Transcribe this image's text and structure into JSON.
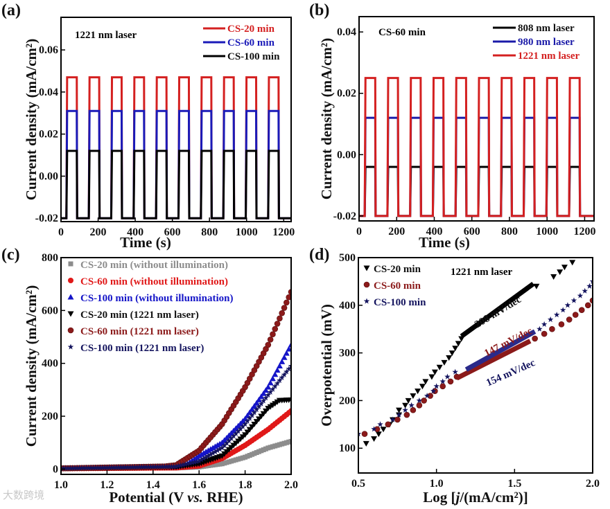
{
  "watermark": "大数跨境",
  "chart_data": [
    {
      "panel": "(a)",
      "type": "line",
      "title": "",
      "annotation": "1221 nm laser",
      "xlabel": "Time (s)",
      "ylabel": "Current density (mA/cm²)",
      "xlim": [
        0,
        1240
      ],
      "ylim": [
        -0.0216,
        0.0755
      ],
      "xticks": [
        0,
        200,
        400,
        600,
        800,
        1000,
        1200
      ],
      "yticks": [
        -0.02,
        0.0,
        0.02,
        0.04,
        0.06
      ],
      "ytick_labels": [
        "-0.02",
        "0.00",
        "0.02",
        "0.04",
        "0.06"
      ],
      "legend_position": "top-right",
      "cycles": 10,
      "period_s": 120.8,
      "first_on_s": 29,
      "on_duration_s": 56,
      "series": [
        {
          "name": "CS-20 min",
          "color": "#d42020",
          "on": 0.047,
          "off": -0.02
        },
        {
          "name": "CS-60 min",
          "color": "#1a1ab8",
          "on": 0.031,
          "off": -0.02
        },
        {
          "name": "CS-100 min",
          "color": "#000000",
          "on": 0.012,
          "off": -0.02
        }
      ]
    },
    {
      "panel": "(b)",
      "type": "line",
      "annotation": "CS-60 min",
      "xlabel": "Time (s)",
      "ylabel": "Current density (mA/cm²)",
      "xlim": [
        0,
        1250
      ],
      "ylim": [
        -0.0216,
        0.045
      ],
      "xticks": [
        0,
        200,
        400,
        600,
        800,
        1000,
        1200
      ],
      "yticks": [
        -0.02,
        0.0,
        0.02,
        0.04
      ],
      "ytick_labels": [
        "-0.02",
        "0.00",
        "0.02",
        "0.04"
      ],
      "legend_position": "top-right",
      "cycles": 10,
      "period_s": 120.8,
      "first_on_s": 30,
      "on_duration_s": 56,
      "series": [
        {
          "name": "808 nm laser",
          "color": "#000000",
          "on": -0.004,
          "off": -0.02
        },
        {
          "name": "980 nm laser",
          "color": "#1a1aa8",
          "on": 0.012,
          "off": -0.02
        },
        {
          "name": "1221 nm laser",
          "color": "#d42020",
          "on": 0.025,
          "off": -0.02
        }
      ],
      "legend_order": [
        0,
        1,
        2
      ]
    },
    {
      "panel": "(c)",
      "type": "scatter",
      "xlabel": "Potential (V vs. RHE)",
      "xlabel_parts": [
        "Potential (V ",
        "vs.",
        " RHE)"
      ],
      "ylabel": "Current density (mA/cm²)",
      "xlim": [
        1.0,
        2.0
      ],
      "ylim": [
        -20,
        800
      ],
      "xticks": [
        1.0,
        1.2,
        1.4,
        1.6,
        1.8,
        2.0
      ],
      "xtick_labels": [
        "1.0",
        "1.2",
        "1.4",
        "1.6",
        "1.8",
        "2.0"
      ],
      "yticks": [
        0,
        200,
        400,
        600,
        800
      ],
      "legend_position": "top-left",
      "series": [
        {
          "name": "CS-20 min (without illumination)",
          "color": "#8c8c8c",
          "marker": "square",
          "points": [
            [
              1.0,
              2
            ],
            [
              1.5,
              4
            ],
            [
              1.6,
              8
            ],
            [
              1.7,
              20
            ],
            [
              1.8,
              45
            ],
            [
              1.9,
              80
            ],
            [
              2.0,
              105
            ]
          ]
        },
        {
          "name": "CS-60 min (without illumination)",
          "color": "#e01818",
          "marker": "circle",
          "points": [
            [
              1.0,
              2
            ],
            [
              1.5,
              5
            ],
            [
              1.6,
              12
            ],
            [
              1.7,
              40
            ],
            [
              1.8,
              90
            ],
            [
              1.9,
              150
            ],
            [
              2.0,
              220
            ]
          ]
        },
        {
          "name": "CS-100 min (without illumination)",
          "color": "#1515c8",
          "marker": "triangle-up",
          "points": [
            [
              1.0,
              3
            ],
            [
              1.5,
              10
            ],
            [
              1.55,
              20
            ],
            [
              1.6,
              50
            ],
            [
              1.7,
              100
            ],
            [
              1.8,
              190
            ],
            [
              1.9,
              310
            ],
            [
              2.0,
              470
            ]
          ]
        },
        {
          "name": "CS-20 min (1221 nm laser)",
          "color": "#000000",
          "marker": "triangle-down",
          "points": [
            [
              1.0,
              3
            ],
            [
              1.5,
              8
            ],
            [
              1.6,
              20
            ],
            [
              1.7,
              50
            ],
            [
              1.8,
              130
            ],
            [
              1.9,
              230
            ],
            [
              1.95,
              260
            ],
            [
              2.0,
              262
            ]
          ]
        },
        {
          "name": "CS-60 min (1221 nm laser)",
          "color": "#8b1a1a",
          "marker": "ball",
          "points": [
            [
              1.0,
              3
            ],
            [
              1.45,
              10
            ],
            [
              1.5,
              15
            ],
            [
              1.6,
              70
            ],
            [
              1.7,
              170
            ],
            [
              1.8,
              310
            ],
            [
              1.9,
              470
            ],
            [
              2.0,
              670
            ]
          ]
        },
        {
          "name": "CS-100 min (1221 nm laser)",
          "color": "#14145e",
          "marker": "star",
          "points": [
            [
              1.0,
              3
            ],
            [
              1.5,
              10
            ],
            [
              1.6,
              30
            ],
            [
              1.7,
              80
            ],
            [
              1.8,
              170
            ],
            [
              1.9,
              280
            ],
            [
              2.0,
              390
            ]
          ]
        }
      ]
    },
    {
      "panel": "(d)",
      "type": "scatter",
      "annotation": "1221 nm laser",
      "xlabel": "Log [j/(mA/cm²)]",
      "xlabel_parts": [
        "Log [",
        "j",
        "/(mA/cm²)]"
      ],
      "ylabel": "Overpotential (mV)",
      "xlim": [
        0.5,
        2.0
      ],
      "ylim": [
        48,
        500
      ],
      "xticks": [
        0.5,
        1.0,
        1.5,
        2.0
      ],
      "xtick_labels": [
        "0.5",
        "1.0",
        "1.5",
        "2.0"
      ],
      "yticks": [
        100,
        200,
        300,
        400,
        500
      ],
      "legend_position": "top-left",
      "series": [
        {
          "name": "CS-20 min",
          "color": "#000000",
          "marker": "triangle-down",
          "points": [
            [
              0.55,
              110
            ],
            [
              0.6,
              120
            ],
            [
              0.63,
              130
            ],
            [
              0.66,
              140
            ],
            [
              0.7,
              150
            ],
            [
              0.72,
              160
            ],
            [
              0.76,
              170
            ],
            [
              0.76,
              180
            ],
            [
              0.8,
              190
            ],
            [
              0.82,
              200
            ],
            [
              0.85,
              210
            ],
            [
              0.88,
              220
            ],
            [
              0.91,
              230
            ],
            [
              0.93,
              240
            ],
            [
              0.97,
              250
            ],
            [
              0.99,
              260
            ],
            [
              1.02,
              270
            ],
            [
              1.05,
              280
            ],
            [
              1.08,
              290
            ],
            [
              1.1,
              300
            ],
            [
              1.12,
              310
            ],
            [
              1.14,
              320
            ],
            [
              1.16,
              330
            ],
            [
              1.64,
              440
            ],
            [
              1.75,
              460
            ],
            [
              1.79,
              470
            ],
            [
              1.82,
              480
            ],
            [
              1.87,
              490
            ]
          ],
          "fit": {
            "label": "208 mV/dec",
            "from": [
              1.16,
              335
            ],
            "to": [
              1.62,
              445
            ]
          }
        },
        {
          "name": "CS-60 min",
          "color": "#8b1a1a",
          "marker": "ball",
          "points": [
            [
              0.54,
              130
            ],
            [
              0.62,
              140
            ],
            [
              0.69,
              150
            ],
            [
              0.75,
              160
            ],
            [
              0.81,
              170
            ],
            [
              0.85,
              180
            ],
            [
              0.89,
              190
            ],
            [
              0.92,
              200
            ],
            [
              0.96,
              210
            ],
            [
              0.99,
              220
            ],
            [
              1.04,
              230
            ],
            [
              1.09,
              240
            ],
            [
              1.13,
              250
            ],
            [
              1.63,
              330
            ],
            [
              1.69,
              340
            ],
            [
              1.74,
              350
            ],
            [
              1.8,
              360
            ],
            [
              1.85,
              370
            ],
            [
              1.89,
              380
            ],
            [
              1.93,
              390
            ],
            [
              1.97,
              400
            ],
            [
              2.0,
              410
            ]
          ],
          "fit": {
            "label": "147 mV/dec",
            "from": [
              1.13,
              247
            ],
            "to": [
              1.6,
              325
            ]
          }
        },
        {
          "name": "CS-100 min",
          "color": "#14145e",
          "marker": "star",
          "points": [
            [
              0.5,
              130
            ],
            [
              0.6,
              140
            ],
            [
              0.64,
              150
            ],
            [
              0.72,
              160
            ],
            [
              0.76,
              170
            ],
            [
              0.8,
              180
            ],
            [
              0.84,
              190
            ],
            [
              0.89,
              200
            ],
            [
              0.94,
              210
            ],
            [
              0.98,
              220
            ],
            [
              1.0,
              230
            ],
            [
              1.04,
              240
            ],
            [
              1.07,
              250
            ],
            [
              1.12,
              260
            ],
            [
              1.66,
              350
            ],
            [
              1.69,
              360
            ],
            [
              1.73,
              370
            ],
            [
              1.77,
              380
            ],
            [
              1.81,
              390
            ],
            [
              1.84,
              400
            ],
            [
              1.88,
              410
            ],
            [
              1.92,
              420
            ],
            [
              1.95,
              430
            ],
            [
              1.98,
              440
            ],
            [
              2.0,
              450
            ]
          ],
          "fit": {
            "label": "154 mV/dec",
            "from": [
              1.19,
              265
            ],
            "to": [
              1.63,
              345
            ]
          }
        }
      ]
    }
  ]
}
